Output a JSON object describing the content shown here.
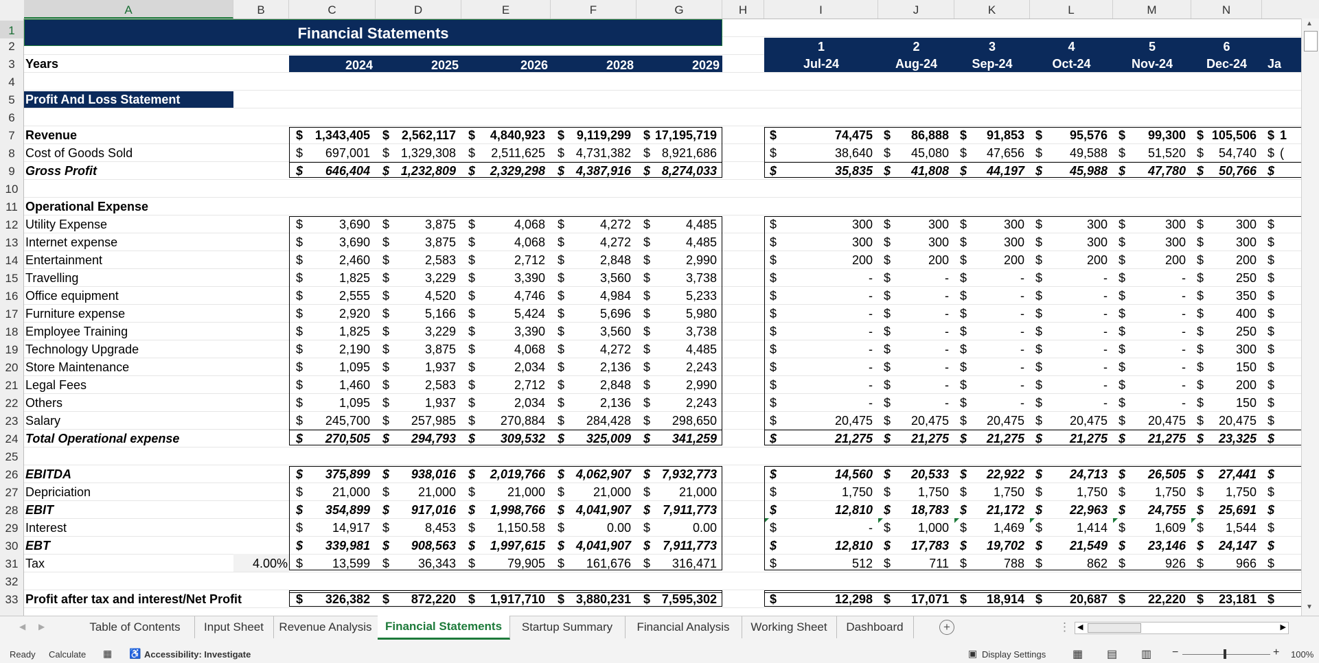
{
  "col_headers": [
    "A",
    "B",
    "C",
    "D",
    "E",
    "F",
    "G",
    "H",
    "I",
    "J",
    "K",
    "L",
    "M",
    "N"
  ],
  "row_numbers": [
    "1",
    "2",
    "3",
    "4",
    "5",
    "6",
    "7",
    "8",
    "9",
    "10",
    "11",
    "12",
    "13",
    "14",
    "15",
    "16",
    "17",
    "18",
    "19",
    "20",
    "21",
    "22",
    "23",
    "24",
    "25",
    "26",
    "27",
    "28",
    "29",
    "30",
    "31",
    "32",
    "33"
  ],
  "title": "Financial Statements",
  "years_label": "Years",
  "years": [
    "2024",
    "2025",
    "2026",
    "2028",
    "2029"
  ],
  "period_numbers": [
    "1",
    "2",
    "3",
    "4",
    "5",
    "6"
  ],
  "months": [
    "Jul-24",
    "Aug-24",
    "Sep-24",
    "Oct-24",
    "Nov-24",
    "Dec-24",
    "Ja"
  ],
  "section_pl": "Profit And Loss Statement",
  "dollar": "$",
  "tax_rate": "4.00%",
  "opex_header": "Operational Expense",
  "rows": [
    {
      "label": "Revenue",
      "style": "b",
      "annual": [
        "1,343,405",
        "2,562,117",
        "4,840,923",
        "9,119,299",
        "17,195,719"
      ],
      "monthly": [
        "74,475",
        "86,888",
        "91,853",
        "95,576",
        "99,300",
        "105,506",
        "1"
      ]
    },
    {
      "label": "Cost of Goods Sold",
      "style": "",
      "annual": [
        "697,001",
        "1,329,308",
        "2,511,625",
        "4,731,382",
        "8,921,686"
      ],
      "monthly": [
        "38,640",
        "45,080",
        "47,656",
        "49,588",
        "51,520",
        "54,740",
        "("
      ]
    },
    {
      "label": "Gross Profit",
      "style": "bi",
      "annual": [
        "646,404",
        "1,232,809",
        "2,329,298",
        "4,387,916",
        "8,274,033"
      ],
      "monthly": [
        "35,835",
        "41,808",
        "44,197",
        "45,988",
        "47,780",
        "50,766",
        ""
      ]
    },
    {
      "label": "Utility Expense",
      "style": "",
      "annual": [
        "3,690",
        "3,875",
        "4,068",
        "4,272",
        "4,485"
      ],
      "monthly": [
        "300",
        "300",
        "300",
        "300",
        "300",
        "300",
        ""
      ]
    },
    {
      "label": "Internet expense",
      "style": "",
      "annual": [
        "3,690",
        "3,875",
        "4,068",
        "4,272",
        "4,485"
      ],
      "monthly": [
        "300",
        "300",
        "300",
        "300",
        "300",
        "300",
        ""
      ]
    },
    {
      "label": "Entertainment",
      "style": "",
      "annual": [
        "2,460",
        "2,583",
        "2,712",
        "2,848",
        "2,990"
      ],
      "monthly": [
        "200",
        "200",
        "200",
        "200",
        "200",
        "200",
        ""
      ]
    },
    {
      "label": "Travelling",
      "style": "",
      "annual": [
        "1,825",
        "3,229",
        "3,390",
        "3,560",
        "3,738"
      ],
      "monthly": [
        "-",
        "-",
        "-",
        "-",
        "-",
        "250",
        ""
      ]
    },
    {
      "label": "Office equipment",
      "style": "",
      "annual": [
        "2,555",
        "4,520",
        "4,746",
        "4,984",
        "5,233"
      ],
      "monthly": [
        "-",
        "-",
        "-",
        "-",
        "-",
        "350",
        ""
      ]
    },
    {
      "label": "Furniture expense",
      "style": "",
      "annual": [
        "2,920",
        "5,166",
        "5,424",
        "5,696",
        "5,980"
      ],
      "monthly": [
        "-",
        "-",
        "-",
        "-",
        "-",
        "400",
        ""
      ]
    },
    {
      "label": "Employee Training",
      "style": "",
      "annual": [
        "1,825",
        "3,229",
        "3,390",
        "3,560",
        "3,738"
      ],
      "monthly": [
        "-",
        "-",
        "-",
        "-",
        "-",
        "250",
        ""
      ]
    },
    {
      "label": "Technology Upgrade",
      "style": "",
      "annual": [
        "2,190",
        "3,875",
        "4,068",
        "4,272",
        "4,485"
      ],
      "monthly": [
        "-",
        "-",
        "-",
        "-",
        "-",
        "300",
        ""
      ]
    },
    {
      "label": "Store Maintenance",
      "style": "",
      "annual": [
        "1,095",
        "1,937",
        "2,034",
        "2,136",
        "2,243"
      ],
      "monthly": [
        "-",
        "-",
        "-",
        "-",
        "-",
        "150",
        ""
      ]
    },
    {
      "label": "Legal Fees",
      "style": "",
      "annual": [
        "1,460",
        "2,583",
        "2,712",
        "2,848",
        "2,990"
      ],
      "monthly": [
        "-",
        "-",
        "-",
        "-",
        "-",
        "200",
        ""
      ]
    },
    {
      "label": "Others",
      "style": "",
      "annual": [
        "1,095",
        "1,937",
        "2,034",
        "2,136",
        "2,243"
      ],
      "monthly": [
        "-",
        "-",
        "-",
        "-",
        "-",
        "150",
        ""
      ]
    },
    {
      "label": "Salary",
      "style": "",
      "annual": [
        "245,700",
        "257,985",
        "270,884",
        "284,428",
        "298,650"
      ],
      "monthly": [
        "20,475",
        "20,475",
        "20,475",
        "20,475",
        "20,475",
        "20,475",
        ""
      ]
    },
    {
      "label": "Total Operational expense",
      "style": "bi",
      "annual": [
        "270,505",
        "294,793",
        "309,532",
        "325,009",
        "341,259"
      ],
      "monthly": [
        "21,275",
        "21,275",
        "21,275",
        "21,275",
        "21,275",
        "23,325",
        ""
      ]
    },
    {
      "label": "EBITDA",
      "style": "bi",
      "annual": [
        "375,899",
        "938,016",
        "2,019,766",
        "4,062,907",
        "7,932,773"
      ],
      "monthly": [
        "14,560",
        "20,533",
        "22,922",
        "24,713",
        "26,505",
        "27,441",
        ""
      ]
    },
    {
      "label": "Depriciation",
      "style": "",
      "annual": [
        "21,000",
        "21,000",
        "21,000",
        "21,000",
        "21,000"
      ],
      "monthly": [
        "1,750",
        "1,750",
        "1,750",
        "1,750",
        "1,750",
        "1,750",
        ""
      ]
    },
    {
      "label": "EBIT",
      "style": "bi",
      "annual": [
        "354,899",
        "917,016",
        "1,998,766",
        "4,041,907",
        "7,911,773"
      ],
      "monthly": [
        "12,810",
        "18,783",
        "21,172",
        "22,963",
        "24,755",
        "25,691",
        ""
      ]
    },
    {
      "label": "Interest",
      "style": "",
      "annual": [
        "14,917",
        "8,453",
        "1,150.58",
        "0.00",
        "0.00"
      ],
      "monthly": [
        "-",
        "1,000",
        "1,469",
        "1,414",
        "1,609",
        "1,544",
        ""
      ]
    },
    {
      "label": "EBT",
      "style": "bi",
      "annual": [
        "339,981",
        "908,563",
        "1,997,615",
        "4,041,907",
        "7,911,773"
      ],
      "monthly": [
        "12,810",
        "17,783",
        "19,702",
        "21,549",
        "23,146",
        "24,147",
        ""
      ]
    },
    {
      "label": "Tax",
      "style": "",
      "annual": [
        "13,599",
        "36,343",
        "79,905",
        "161,676",
        "316,471"
      ],
      "monthly": [
        "512",
        "711",
        "788",
        "862",
        "926",
        "966",
        ""
      ]
    },
    {
      "label": "Profit after tax and interest/Net Profit",
      "style": "b",
      "annual": [
        "326,382",
        "872,220",
        "1,917,710",
        "3,880,231",
        "7,595,302"
      ],
      "monthly": [
        "12,298",
        "17,071",
        "18,914",
        "20,687",
        "22,220",
        "23,181",
        ""
      ]
    }
  ],
  "tabs": [
    "Table of Contents",
    "Input Sheet",
    "Revenue Analysis",
    "Financial Statements",
    "Startup Summary",
    "Financial Analysis",
    "Working Sheet",
    "Dashboard"
  ],
  "active_tab": "Financial Statements",
  "status": {
    "ready": "Ready",
    "calculate": "Calculate",
    "accessibility": "Accessibility: Investigate",
    "display_settings": "Display Settings",
    "zoom": "100%"
  }
}
